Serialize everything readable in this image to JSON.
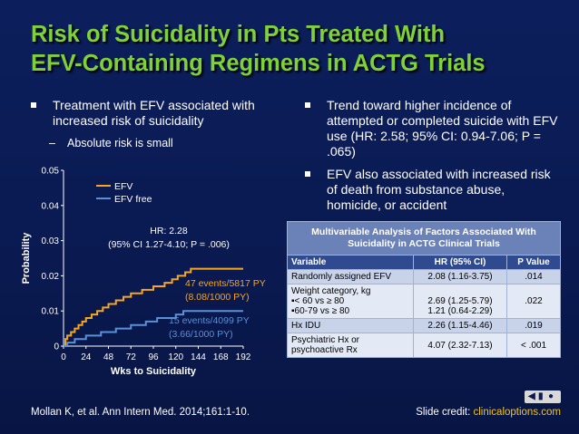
{
  "slide": {
    "title_line1": "Risk of Suicidality in Pts Treated With",
    "title_line2": "EFV-Containing Regimens in ACTG Trials",
    "left_bullet": "Treatment with EFV associated with increased risk of suicidality",
    "left_sub": "Absolute risk is small",
    "right_bullets": [
      "Trend toward higher incidence of attempted or completed suicide with EFV use (HR: 2.58; 95% CI: 0.94-7.06; P = .065)",
      "EFV also associated with increased risk of death from substance abuse, homicide, or accident"
    ],
    "table": {
      "caption": "Multivariable Analysis of Factors Associated With Suicidality in ACTG Clinical Trials",
      "headers": [
        "Variable",
        "HR (95% CI)",
        "P Value"
      ],
      "rows": [
        {
          "variable": "Randomly assigned EFV",
          "hr": "2.08 (1.16-3.75)",
          "p": ".014"
        },
        {
          "variable": "Weight category, kg",
          "sub1": "▪< 60 vs ≥ 80",
          "sub2": "▪60-79 vs ≥ 80",
          "hr1": "2.69 (1.25-5.79)",
          "hr2": "1.21 (0.64-2.29)",
          "p": ".022"
        },
        {
          "variable": "Hx IDU",
          "hr": "2.26 (1.15-4.46)",
          "p": ".019"
        },
        {
          "variable1": "Psychiatric Hx or",
          "variable2": "psychoactive Rx",
          "hr": "4.07 (2.32-7.13)",
          "p": "< .001"
        }
      ]
    },
    "footer_citation": "Mollan K, et al. Ann Intern Med. 2014;161:1-10.",
    "footer_credit_label": "Slide credit: ",
    "footer_credit_link": "clinicaloptions.com",
    "colors": {
      "title": "#7fd13a",
      "efv": "#f5a623",
      "efv_free": "#5b8fd6",
      "background": "#0c1f5c"
    }
  },
  "chart_data": {
    "type": "line",
    "xlabel": "Wks to Suicidality",
    "ylabel": "Probability",
    "x_ticks": [
      0,
      24,
      48,
      72,
      96,
      120,
      144,
      168,
      192
    ],
    "y_ticks": [
      "0",
      "0.01",
      "0.02",
      "0.03",
      "0.04",
      "0.05"
    ],
    "xlim": [
      0,
      192
    ],
    "ylim": [
      0,
      0.05
    ],
    "legend": [
      "EFV",
      "EFV free"
    ],
    "legend_position": "top-left",
    "hr_annotation_line1": "HR: 2.28",
    "hr_annotation_line2": "(95% CI 1.27-4.10; P = .006)",
    "efv_label_line1": "47 events/5817 PY",
    "efv_label_line2": "(8.08/1000 PY)",
    "efv_free_label_line1": "15 events/4099 PY",
    "efv_free_label_line2": "(3.66/1000 PY)",
    "series": [
      {
        "name": "EFV",
        "color": "#f5a623",
        "points": [
          [
            0,
            0
          ],
          [
            2,
            0.002
          ],
          [
            4,
            0.003
          ],
          [
            8,
            0.004
          ],
          [
            12,
            0.005
          ],
          [
            16,
            0.006
          ],
          [
            20,
            0.007
          ],
          [
            24,
            0.008
          ],
          [
            30,
            0.009
          ],
          [
            36,
            0.01
          ],
          [
            42,
            0.011
          ],
          [
            48,
            0.012
          ],
          [
            56,
            0.013
          ],
          [
            64,
            0.014
          ],
          [
            72,
            0.015
          ],
          [
            84,
            0.016
          ],
          [
            96,
            0.017
          ],
          [
            108,
            0.018
          ],
          [
            116,
            0.019
          ],
          [
            122,
            0.02
          ],
          [
            130,
            0.021
          ],
          [
            136,
            0.022
          ],
          [
            148,
            0.022
          ],
          [
            192,
            0.022
          ]
        ]
      },
      {
        "name": "EFV free",
        "color": "#5b8fd6",
        "points": [
          [
            0,
            0
          ],
          [
            4,
            0.001
          ],
          [
            12,
            0.002
          ],
          [
            24,
            0.003
          ],
          [
            40,
            0.004
          ],
          [
            56,
            0.005
          ],
          [
            72,
            0.006
          ],
          [
            88,
            0.007
          ],
          [
            100,
            0.008
          ],
          [
            120,
            0.009
          ],
          [
            128,
            0.01
          ],
          [
            140,
            0.01
          ],
          [
            192,
            0.01
          ]
        ]
      }
    ]
  }
}
